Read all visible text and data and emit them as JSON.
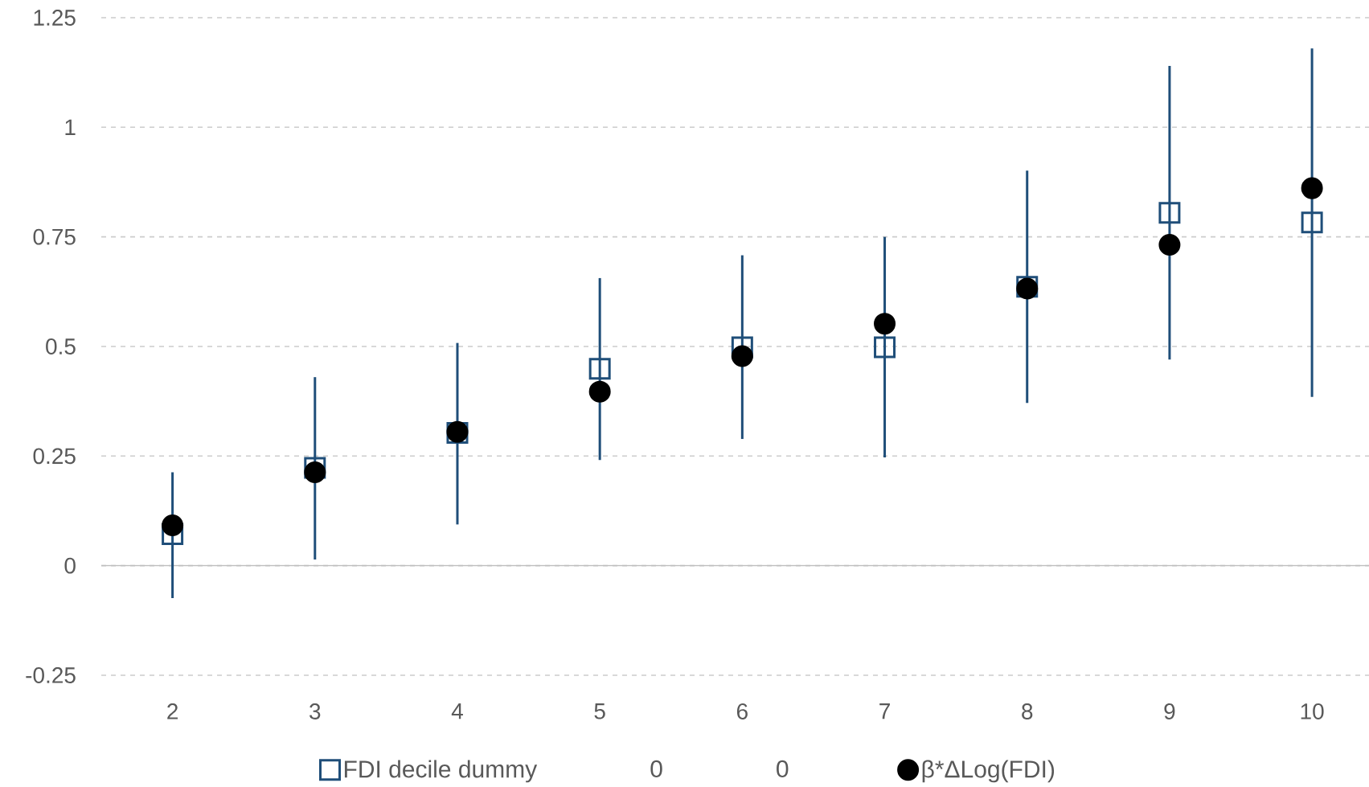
{
  "chart_data": {
    "type": "scatter",
    "categories": [
      "2",
      "3",
      "4",
      "5",
      "6",
      "7",
      "8",
      "9",
      "10"
    ],
    "series": [
      {
        "name": "FDI decile dummy",
        "color": "#1f4e79",
        "marker": "square",
        "values": [
          0.072,
          0.223,
          0.303,
          0.449,
          0.498,
          0.498,
          0.636,
          0.805,
          0.783
        ],
        "errors": [
          [
            -0.074,
            0.213
          ],
          [
            0.014,
            0.43
          ],
          [
            0.094,
            0.508
          ],
          [
            0.241,
            0.656
          ],
          [
            0.289,
            0.708
          ],
          [
            0.247,
            0.75
          ],
          [
            0.371,
            0.901
          ],
          [
            0.47,
            1.14
          ],
          [
            0.385,
            1.18
          ]
        ]
      },
      {
        "name": "0",
        "values": [
          null,
          null,
          null,
          null,
          null,
          null,
          null,
          null,
          null
        ]
      },
      {
        "name": "0",
        "values": [
          null,
          null,
          null,
          null,
          null,
          null,
          null,
          null,
          null
        ]
      },
      {
        "name": "β*ΔLog(FDI)",
        "color": "#000000",
        "marker": "circle",
        "values": [
          0.092,
          0.213,
          0.305,
          0.397,
          0.478,
          0.552,
          0.632,
          0.732,
          0.861
        ]
      }
    ],
    "ylim": [
      -0.25,
      1.25
    ],
    "yticks": [
      -0.25,
      0,
      0.25,
      0.5,
      0.75,
      1,
      1.25
    ],
    "grid": "y",
    "legend": "bottom"
  }
}
